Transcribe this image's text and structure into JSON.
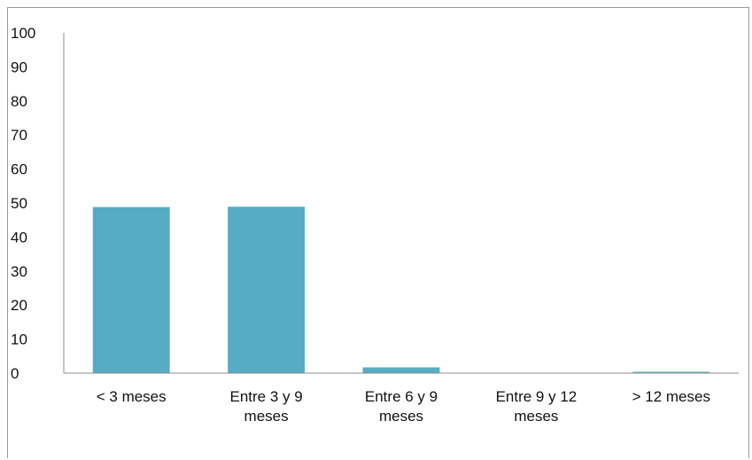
{
  "chart_data": {
    "type": "bar",
    "categories": [
      [
        "< 3 meses"
      ],
      [
        "Entre 3 y 9",
        "meses"
      ],
      [
        "Entre 6 y 9",
        "meses"
      ],
      [
        "Entre 9 y 12",
        "meses"
      ],
      [
        "> 12 meses"
      ]
    ],
    "values": [
      48.8,
      48.9,
      1.7,
      0.0,
      0.4
    ],
    "ylim": [
      0,
      100
    ],
    "yticks": [
      0,
      10,
      20,
      30,
      40,
      50,
      60,
      70,
      80,
      90,
      100
    ],
    "bar_color": "#56acc4",
    "axis_color": "#8c8c8c",
    "grid": false,
    "legend": "none"
  }
}
